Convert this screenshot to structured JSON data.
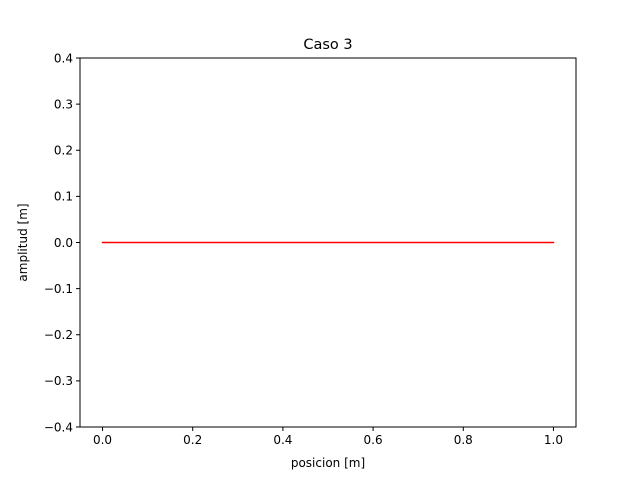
{
  "chart_data": {
    "type": "line",
    "title": "Caso 3",
    "xlabel": "posicion [m]",
    "ylabel": "amplitud [m]",
    "xlim": [
      -0.05,
      1.05
    ],
    "ylim": [
      -0.4,
      0.4
    ],
    "xticks": [
      0.0,
      0.2,
      0.4,
      0.6,
      0.8,
      1.0
    ],
    "xtick_labels": [
      "0.0",
      "0.2",
      "0.4",
      "0.6",
      "0.8",
      "1.0"
    ],
    "yticks": [
      -0.4,
      -0.3,
      -0.2,
      -0.1,
      0.0,
      0.1,
      0.2,
      0.3,
      0.4
    ],
    "ytick_labels": [
      "−0.4",
      "−0.3",
      "−0.2",
      "−0.1",
      "0.0",
      "0.1",
      "0.2",
      "0.3",
      "0.4"
    ],
    "grid": false,
    "series": [
      {
        "color": "#ff0000",
        "x": [
          0.0,
          1.0
        ],
        "y": [
          0.0,
          0.0
        ]
      }
    ]
  }
}
